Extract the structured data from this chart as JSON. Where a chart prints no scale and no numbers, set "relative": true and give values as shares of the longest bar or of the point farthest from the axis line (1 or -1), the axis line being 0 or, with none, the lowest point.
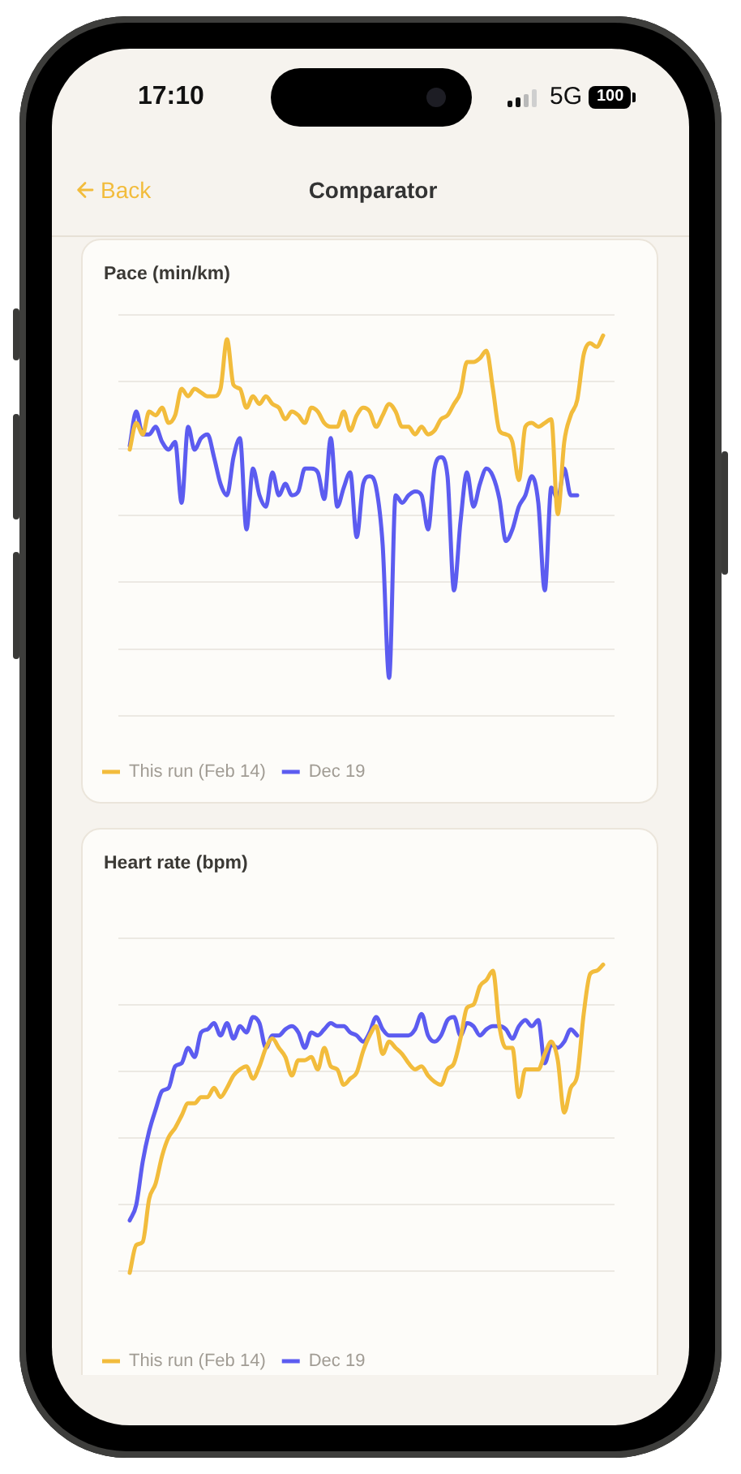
{
  "chart_data": [
    {
      "type": "other",
      "title": "Comparator",
      "annotations": [
        "17:10",
        "5G",
        "100",
        "Back"
      ]
    },
    {
      "type": "line",
      "title": "Pace (min/km)",
      "relative": true,
      "grid": "y",
      "tick_labels": false,
      "legend": "bottom left",
      "categories": [
        null,
        null,
        null,
        null,
        null,
        null,
        null,
        null,
        null,
        null,
        null,
        null,
        null,
        null,
        null,
        null,
        null,
        null,
        null,
        null,
        null,
        null,
        null,
        null,
        null,
        null,
        null,
        null,
        null,
        null,
        null,
        null,
        null,
        null,
        null,
        null,
        null,
        null,
        null,
        null,
        null,
        null,
        null,
        null,
        null,
        null,
        null,
        null,
        null,
        null,
        null,
        null,
        null,
        null,
        null,
        null,
        null,
        null,
        null,
        null,
        null,
        null,
        null,
        null,
        null,
        null,
        null,
        null,
        null,
        null,
        null,
        null,
        null,
        null
      ],
      "series": [
        {
          "name": "This run (Feb 14)",
          "color": "#f2bc3c",
          "values": [
            0.7,
            0.77,
            0.74,
            0.8,
            0.79,
            0.81,
            0.77,
            0.79,
            0.86,
            0.84,
            0.86,
            0.85,
            0.84,
            0.84,
            0.86,
            0.99,
            0.87,
            0.86,
            0.81,
            0.84,
            0.82,
            0.84,
            0.82,
            0.81,
            0.78,
            0.8,
            0.79,
            0.77,
            0.81,
            0.8,
            0.77,
            0.76,
            0.76,
            0.8,
            0.75,
            0.79,
            0.81,
            0.8,
            0.76,
            0.79,
            0.82,
            0.8,
            0.76,
            0.76,
            0.74,
            0.76,
            0.74,
            0.75,
            0.78,
            0.79,
            0.82,
            0.85,
            0.93,
            0.93,
            0.94,
            0.96,
            0.86,
            0.75,
            0.74,
            0.72,
            0.62,
            0.76,
            0.77,
            0.76,
            0.77,
            0.78,
            0.53,
            0.72,
            0.79,
            0.83,
            0.95,
            0.98,
            0.97,
            1
          ]
        },
        {
          "name": "Dec 19",
          "color": "#5c5cf0",
          "values": [
            0.71,
            0.8,
            0.74,
            0.74,
            0.76,
            0.72,
            0.7,
            0.72,
            0.56,
            0.76,
            0.7,
            0.73,
            0.74,
            0.68,
            0.61,
            0.58,
            0.68,
            0.73,
            0.49,
            0.65,
            0.58,
            0.55,
            0.64,
            0.58,
            0.61,
            0.58,
            0.59,
            0.65,
            0.65,
            0.64,
            0.57,
            0.73,
            0.55,
            0.6,
            0.64,
            0.47,
            0.61,
            0.63,
            0.6,
            0.45,
            0.1,
            0.58,
            0.56,
            0.58,
            0.59,
            0.58,
            0.49,
            0.65,
            0.68,
            0.63,
            0.33,
            0.51,
            0.64,
            0.55,
            0.61,
            0.65,
            0.63,
            0.57,
            0.46,
            0.49,
            0.55,
            0.58,
            0.63,
            0.56,
            0.33,
            0.6,
            0.57,
            0.65,
            0.58,
            0.58,
            null,
            null,
            null,
            null
          ]
        }
      ]
    },
    {
      "type": "line",
      "title": "Heart rate (bpm)",
      "relative": true,
      "grid": "y",
      "tick_labels": false,
      "legend": "bottom left",
      "categories": [
        null,
        null,
        null,
        null,
        null,
        null,
        null,
        null,
        null,
        null,
        null,
        null,
        null,
        null,
        null,
        null,
        null,
        null,
        null,
        null,
        null,
        null,
        null,
        null,
        null,
        null,
        null,
        null,
        null,
        null,
        null,
        null,
        null,
        null,
        null,
        null,
        null,
        null,
        null,
        null,
        null,
        null,
        null,
        null,
        null,
        null,
        null,
        null,
        null,
        null,
        null,
        null,
        null,
        null,
        null,
        null,
        null,
        null,
        null,
        null,
        null,
        null,
        null,
        null,
        null,
        null,
        null,
        null,
        null,
        null,
        null,
        null,
        null,
        null
      ],
      "series": [
        {
          "name": "This run (Feb 14)",
          "color": "#f2bc3c",
          "values": [
            0,
            0.09,
            0.1,
            0.24,
            0.29,
            0.38,
            0.44,
            0.47,
            0.51,
            0.55,
            0.55,
            0.57,
            0.57,
            0.6,
            0.57,
            0.6,
            0.64,
            0.66,
            0.67,
            0.63,
            0.67,
            0.73,
            0.76,
            0.73,
            0.7,
            0.64,
            0.69,
            0.69,
            0.7,
            0.66,
            0.73,
            0.67,
            0.66,
            0.61,
            0.63,
            0.65,
            0.72,
            0.77,
            0.8,
            0.71,
            0.75,
            0.73,
            0.71,
            0.68,
            0.66,
            0.67,
            0.64,
            0.62,
            0.61,
            0.66,
            0.68,
            0.76,
            0.86,
            0.87,
            0.93,
            0.95,
            0.98,
            0.8,
            0.73,
            0.73,
            0.57,
            0.66,
            0.66,
            0.66,
            0.71,
            0.75,
            0.69,
            0.52,
            0.6,
            0.64,
            0.84,
            0.97,
            0.98,
            1
          ]
        },
        {
          "name": "Dec 19",
          "color": "#5c5cf0",
          "values": [
            0.17,
            0.22,
            0.36,
            0.46,
            0.53,
            0.59,
            0.6,
            0.67,
            0.68,
            0.73,
            0.7,
            0.78,
            0.79,
            0.81,
            0.77,
            0.81,
            0.76,
            0.8,
            0.78,
            0.83,
            0.81,
            0.73,
            0.77,
            0.77,
            0.79,
            0.8,
            0.78,
            0.73,
            0.78,
            0.77,
            0.79,
            0.81,
            0.8,
            0.8,
            0.78,
            0.77,
            0.75,
            0.78,
            0.83,
            0.79,
            0.77,
            0.77,
            0.77,
            0.77,
            0.79,
            0.84,
            0.77,
            0.75,
            0.77,
            0.82,
            0.83,
            0.77,
            0.81,
            0.8,
            0.77,
            0.79,
            0.8,
            0.8,
            0.79,
            0.76,
            0.8,
            0.82,
            0.8,
            0.82,
            0.68,
            0.74,
            0.73,
            0.75,
            0.79,
            0.77,
            null,
            null,
            null,
            null
          ]
        }
      ]
    }
  ]
}
